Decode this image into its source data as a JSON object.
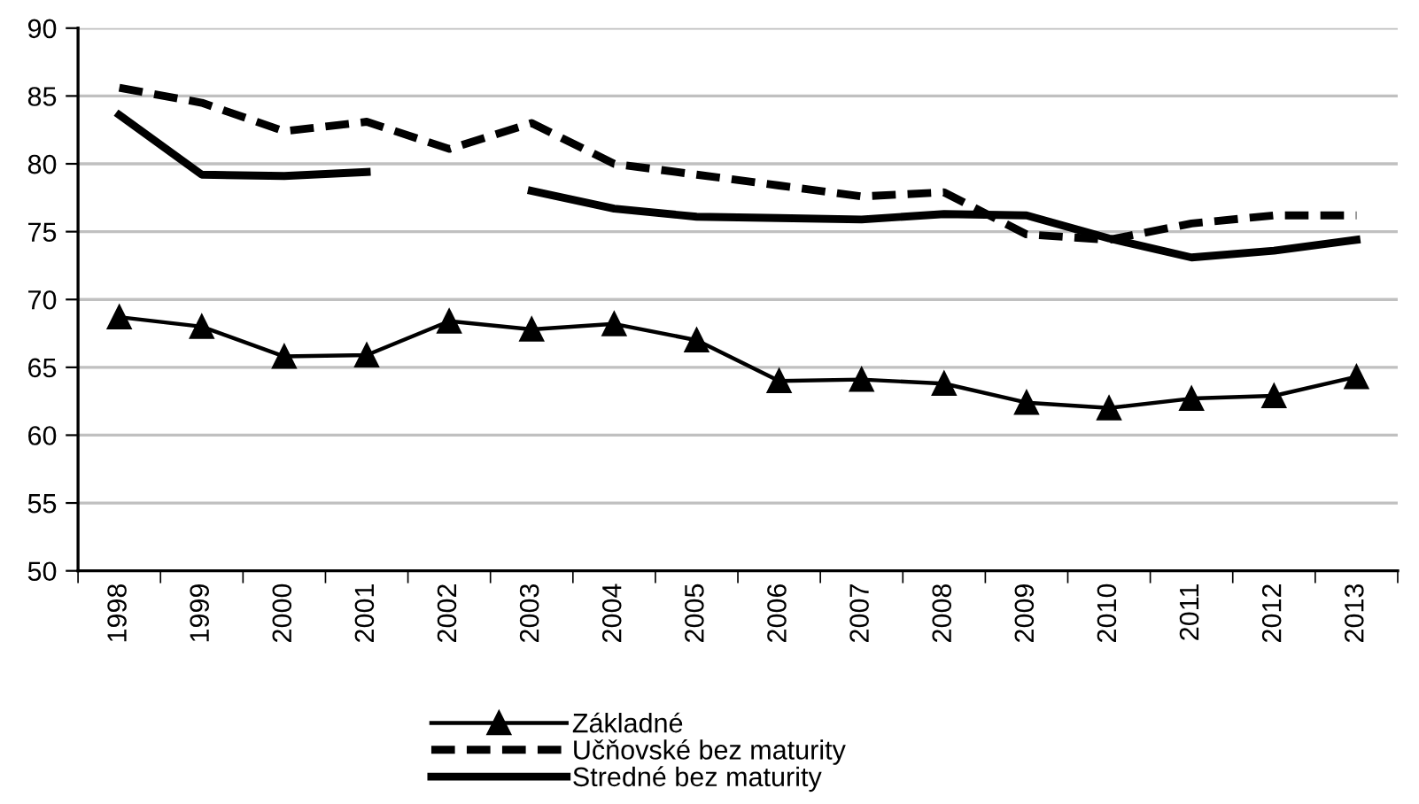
{
  "chart_data": {
    "type": "line",
    "categories": [
      "1998",
      "1999",
      "2000",
      "2001",
      "2002",
      "2003",
      "2004",
      "2005",
      "2006",
      "2007",
      "2008",
      "2009",
      "2010",
      "2011",
      "2012",
      "2013"
    ],
    "series": [
      {
        "name": "Základné",
        "color": "#000000",
        "marker": "triangle",
        "line_style": "solid",
        "values": [
          68.7,
          68.0,
          65.8,
          65.9,
          68.4,
          67.8,
          68.2,
          67.0,
          64.0,
          64.1,
          63.8,
          62.4,
          62.0,
          62.7,
          62.9,
          64.3
        ]
      },
      {
        "name": "Učňovské bez maturity",
        "color": "#000000",
        "marker": "none",
        "line_style": "dashed",
        "values": [
          85.6,
          84.5,
          82.4,
          83.1,
          81.1,
          83.0,
          80.0,
          79.2,
          78.4,
          77.6,
          77.9,
          74.8,
          74.4,
          75.6,
          76.2,
          76.2
        ]
      },
      {
        "name": "Stredné bez maturity",
        "color": "#000000",
        "marker": "none",
        "line_style": "solid",
        "values": [
          83.6,
          79.2,
          79.1,
          79.4,
          null,
          78.0,
          76.7,
          76.1,
          76.0,
          75.9,
          76.3,
          76.2,
          74.5,
          73.1,
          73.6,
          74.4
        ]
      }
    ],
    "ylim": [
      50,
      90
    ],
    "yticks": [
      50,
      55,
      60,
      65,
      70,
      75,
      80,
      85,
      90
    ],
    "grid": "y",
    "legend": "bottom"
  }
}
